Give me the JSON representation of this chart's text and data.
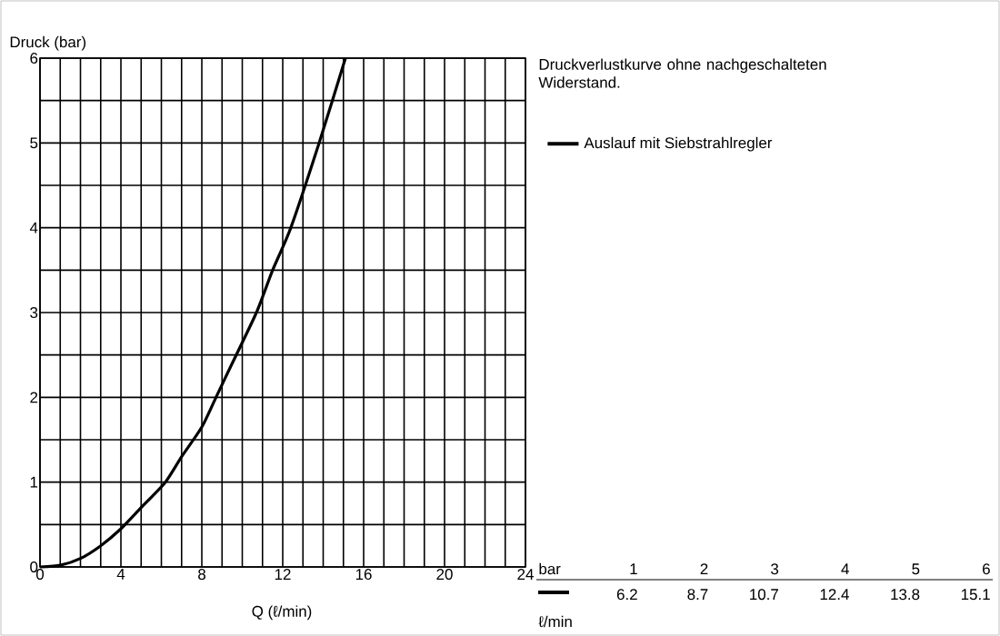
{
  "chart_data": {
    "type": "line",
    "xlabel": "Q (ℓ/min)",
    "ylabel": "Druck (bar)",
    "series": [
      {
        "name": "Auslauf mit Siebstrahlregler",
        "color": "#000000",
        "x": [
          0,
          1,
          2,
          3,
          4,
          5,
          6.2,
          7,
          8,
          8.7,
          9.5,
          10.7,
          11.5,
          12.4,
          13.8,
          15.1
        ],
        "values": [
          0,
          0.02,
          0.1,
          0.25,
          0.45,
          0.7,
          1,
          1.3,
          1.65,
          2,
          2.4,
          3,
          3.5,
          4,
          5,
          6
        ]
      }
    ],
    "annotations": [
      "Druckverlustkurve ohne nachgeschalteten Widerstand.",
      "bar",
      "ℓ/min",
      "1",
      "2",
      "3",
      "4",
      "5",
      "6",
      "6.2",
      "8.7",
      "10.7",
      "12.4",
      "13.8",
      "15.1"
    ],
    "xlim": [
      0,
      24
    ],
    "ylim": [
      0,
      6
    ],
    "xticks": [
      0,
      {
        "value": 1,
        "label": null
      },
      {
        "value": 2,
        "label": null
      },
      {
        "value": 3,
        "label": null
      },
      4,
      {
        "value": 5,
        "label": null
      },
      {
        "value": 6,
        "label": null
      },
      {
        "value": 7,
        "label": null
      },
      8,
      {
        "value": 9,
        "label": null
      },
      {
        "value": 10,
        "label": null
      },
      {
        "value": 11,
        "label": null
      },
      12,
      {
        "value": 13,
        "label": null
      },
      {
        "value": 14,
        "label": null
      },
      {
        "value": 15,
        "label": null
      },
      16,
      {
        "value": 17,
        "label": null
      },
      {
        "value": 18,
        "label": null
      },
      {
        "value": 19,
        "label": null
      },
      20,
      {
        "value": 21,
        "label": null
      },
      {
        "value": 22,
        "label": null
      },
      {
        "value": 23,
        "label": null
      },
      24
    ],
    "yticks": [
      0,
      {
        "value": 0.5,
        "label": null
      },
      1,
      {
        "value": 1.5,
        "label": null
      },
      2,
      {
        "value": 2.5,
        "label": null
      },
      3,
      {
        "value": 3.5,
        "label": null
      },
      4,
      {
        "value": 4.5,
        "label": null
      },
      5,
      {
        "value": 5.5,
        "label": null
      },
      6
    ],
    "grid": true,
    "legend": "right",
    "marker": "none",
    "line_style": "solid"
  }
}
